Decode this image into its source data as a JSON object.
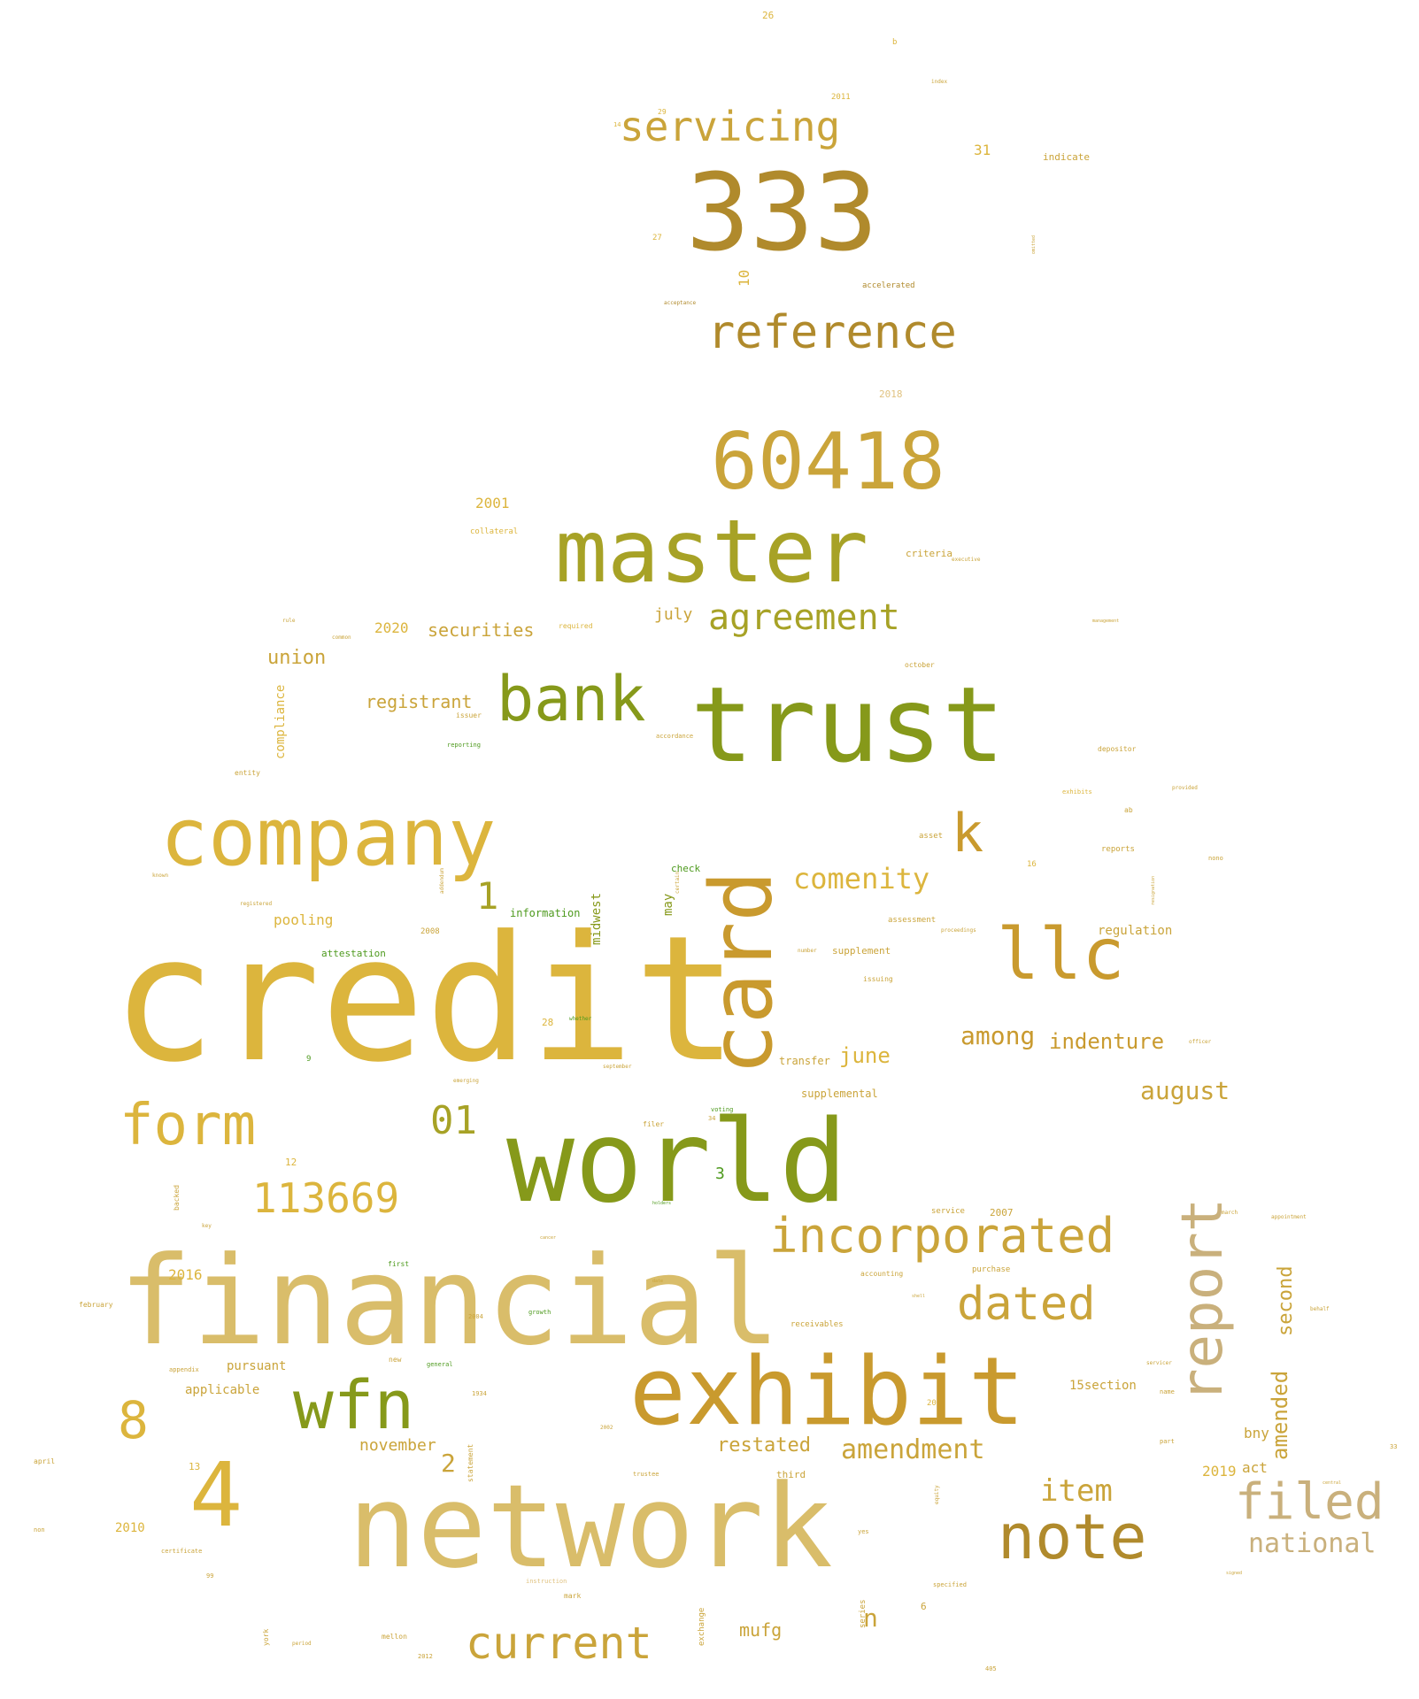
{
  "words": {
    "credit": "credit",
    "financial": "financial",
    "world": "world",
    "network": "network",
    "exhibit": "exhibit",
    "trust": "trust",
    "card": "card",
    "company": "company",
    "master": "master",
    "n333": "333",
    "n60418": "60418",
    "bank": "bank",
    "llc": "llc",
    "wfn": "wfn",
    "four": "4",
    "note": "note",
    "report": "report",
    "filed": "filed",
    "form": "form",
    "reference": "reference",
    "incorporated": "incorporated",
    "dated": "dated",
    "current": "current",
    "agreement": "agreement",
    "servicing": "servicing",
    "n113669": "113669",
    "k": "k",
    "eight": "8",
    "n01": "01",
    "comenity": "comenity",
    "one": "1",
    "among": "among",
    "indenture": "indenture",
    "item": "item",
    "amendment": "amendment",
    "national": "national",
    "august": "august",
    "june": "june",
    "restated": "restated",
    "amended": "amended",
    "second": "second",
    "union": "union",
    "securities": "securities",
    "registrant": "registrant",
    "july": "july",
    "y2020": "2020",
    "n": "n",
    "mufg": "mufg",
    "two": "2",
    "november": "november",
    "pooling": "pooling",
    "y2001": "2001",
    "midwest": "midwest",
    "compliance": "compliance",
    "may": "may",
    "ten": "10",
    "thirtyone": "31",
    "y2019": "2019",
    "act": "act",
    "bny": "bny",
    "three": "3",
    "section15": "15section",
    "regulation": "regulation",
    "applicable": "applicable",
    "pursuant": "pursuant",
    "y2016": "2016",
    "information": "information",
    "attestation": "attestation",
    "supplemental": "supplemental",
    "transfer": "transfer",
    "supplement": "supplement",
    "criteria": "criteria",
    "indicate": "indicate",
    "accelerated": "accelerated",
    "y2018": "2018",
    "y2011": "2011",
    "twentysix": "26",
    "b": "b",
    "twentyseven": "27",
    "twentynine": "29",
    "y2008": "2008",
    "twentyeight": "28",
    "nine": "9",
    "twelve": "12",
    "thirteen": "13",
    "y2010": "2010",
    "six": "6",
    "y2007": "2007",
    "twenty": "20",
    "sixteen": "16",
    "fourteen": "14",
    "check": "check",
    "service": "service",
    "purchase": "purchase",
    "receivables": "receivables",
    "accounting": "accounting",
    "collateral": "collateral",
    "depositor": "depositor",
    "required": "required",
    "reporting": "reporting",
    "first": "first",
    "general": "general",
    "growth": "growth",
    "voting": "voting",
    "exhibits": "exhibits",
    "reports": "reports",
    "asset": "asset",
    "assessment": "assessment",
    "october": "october",
    "entity": "entity",
    "mellon": "mellon",
    "mark": "mark",
    "trustee": "trustee",
    "third": "third",
    "filer": "filer",
    "issuing": "issuing",
    "nono": "nono",
    "name": "name",
    "part": "part",
    "yes": "yes",
    "new": "new",
    "certificate": "certificate",
    "non": "non",
    "april": "april",
    "february": "february",
    "backed": "backed",
    "york": "york",
    "series": "series",
    "exchange": "exchange",
    "statement": "statement",
    "y2012": "2012",
    "n405": "405",
    "ninetynine": "99",
    "thirtyfour": "34",
    "y1934": "1934",
    "y2004": "2004",
    "y2002": "2002",
    "thirtythree": "33",
    "specified": "specified",
    "appendix": "appendix",
    "instruction": "instruction",
    "accordance": "accordance",
    "issuer": "issuer",
    "september": "september",
    "emerging": "emerging",
    "whether": "whether",
    "period": "period",
    "acceptance": "acceptance",
    "executive": "executive",
    "common": "common",
    "rule": "rule",
    "management": "management",
    "provided": "provided",
    "ab": "ab",
    "proceedings": "proceedings",
    "officer": "officer",
    "appointment": "appointment",
    "march": "march",
    "servicer": "servicer",
    "behalf": "behalf",
    "central": "central",
    "signed": "signed",
    "index": "index",
    "number": "number",
    "certain": "certain",
    "addendum": "addendum",
    "equity": "equity",
    "resignation": "resignation",
    "omitted": "omitted",
    "registered": "registered",
    "known": "known",
    "key": "key",
    "cancer": "cancer",
    "date": "date",
    "holders": "holders",
    "shell": "shell"
  }
}
